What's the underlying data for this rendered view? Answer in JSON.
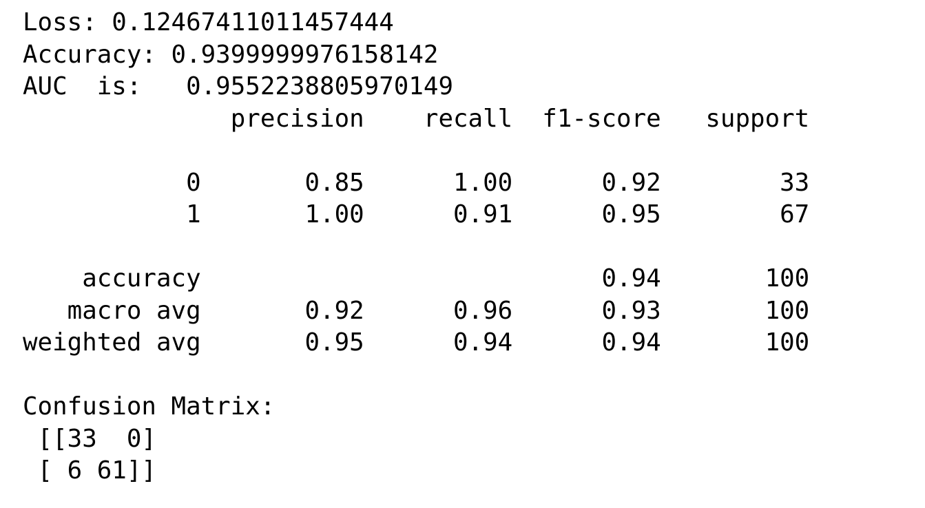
{
  "output": {
    "lines": [
      "Loss: 0.12467411011457444",
      "Accuracy: 0.9399999976158142",
      "AUC  is:   0.9552238805970149",
      "              precision    recall  f1-score   support",
      "",
      "           0       0.85      1.00      0.92        33",
      "           1       1.00      0.91      0.95        67",
      "",
      "    accuracy                           0.94       100",
      "   macro avg       0.92      0.96      0.93       100",
      "weighted avg       0.95      0.94      0.94       100",
      "",
      "Confusion Matrix:",
      " [[33  0]",
      " [ 6 61]]"
    ]
  }
}
